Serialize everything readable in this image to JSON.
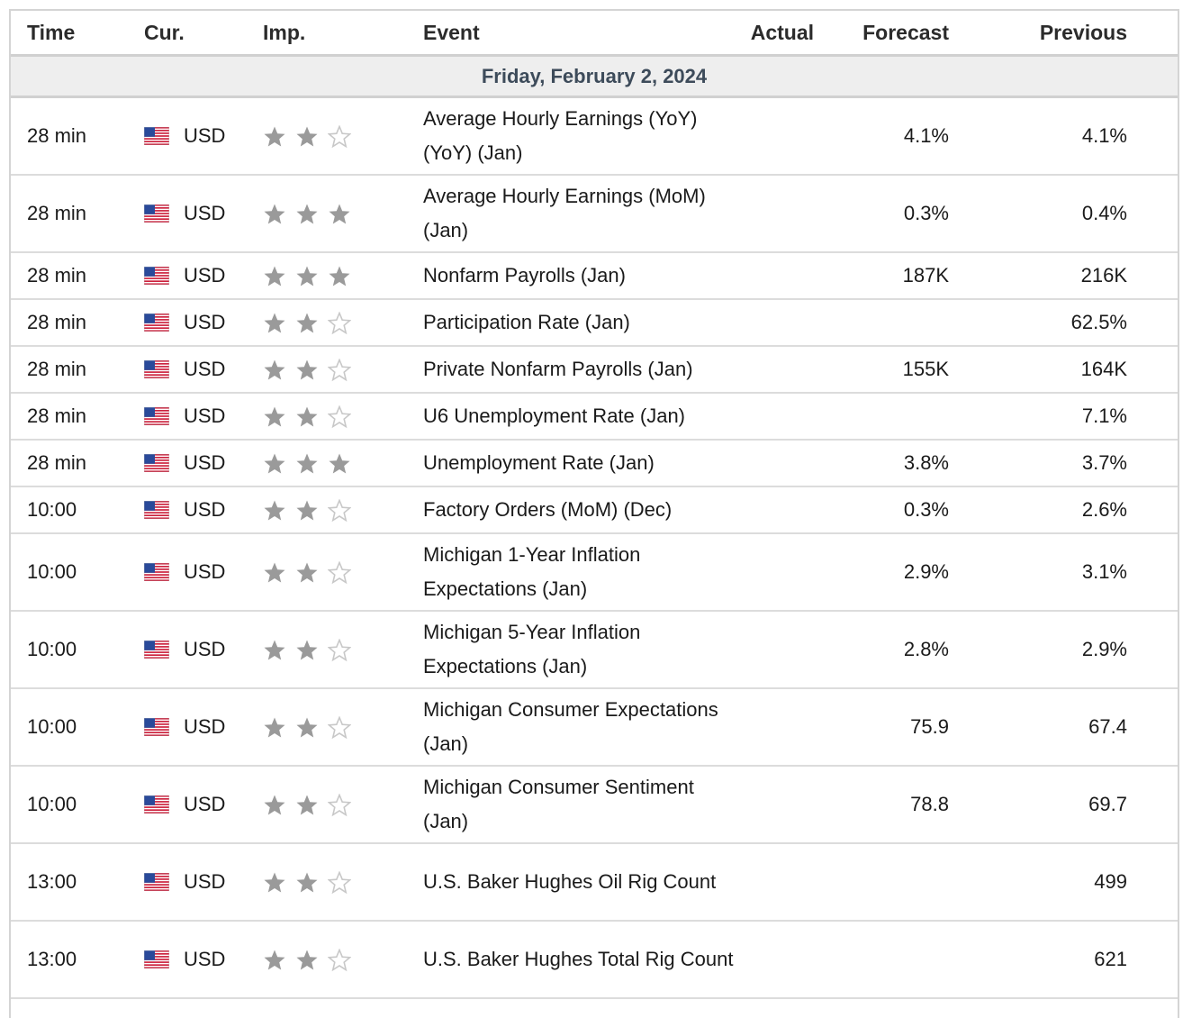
{
  "headers": {
    "time": "Time",
    "currency": "Cur.",
    "importance": "Imp.",
    "event": "Event",
    "actual": "Actual",
    "forecast": "Forecast",
    "previous": "Previous"
  },
  "date_label": "Friday, February 2, 2024",
  "colors": {
    "star_filled": "#9a9a9a",
    "star_empty": "#c8c8c8",
    "date_text": "#3d4b5a",
    "flag_red": "#c8102e",
    "flag_blue": "#2a4a9a"
  },
  "icons": {
    "flag": "us-flag-icon",
    "star_filled": "star-filled-icon",
    "star_empty": "star-empty-icon"
  },
  "events": [
    {
      "time": "28 min",
      "currency": "USD",
      "importance": 2,
      "event": "Average Hourly Earnings (YoY) (YoY) (Jan)",
      "actual": "",
      "forecast": "4.1%",
      "previous": "4.1%"
    },
    {
      "time": "28 min",
      "currency": "USD",
      "importance": 3,
      "event": "Average Hourly Earnings (MoM) (Jan)",
      "actual": "",
      "forecast": "0.3%",
      "previous": "0.4%"
    },
    {
      "time": "28 min",
      "currency": "USD",
      "importance": 3,
      "event": "Nonfarm Payrolls (Jan)",
      "actual": "",
      "forecast": "187K",
      "previous": "216K"
    },
    {
      "time": "28 min",
      "currency": "USD",
      "importance": 2,
      "event": "Participation Rate (Jan)",
      "actual": "",
      "forecast": "",
      "previous": "62.5%"
    },
    {
      "time": "28 min",
      "currency": "USD",
      "importance": 2,
      "event": "Private Nonfarm Payrolls (Jan)",
      "actual": "",
      "forecast": "155K",
      "previous": "164K"
    },
    {
      "time": "28 min",
      "currency": "USD",
      "importance": 2,
      "event": "U6 Unemployment Rate (Jan)",
      "actual": "",
      "forecast": "",
      "previous": "7.1%"
    },
    {
      "time": "28 min",
      "currency": "USD",
      "importance": 3,
      "event": "Unemployment Rate (Jan)",
      "actual": "",
      "forecast": "3.8%",
      "previous": "3.7%"
    },
    {
      "time": "10:00",
      "currency": "USD",
      "importance": 2,
      "event": "Factory Orders (MoM) (Dec)",
      "actual": "",
      "forecast": "0.3%",
      "previous": "2.6%"
    },
    {
      "time": "10:00",
      "currency": "USD",
      "importance": 2,
      "event": "Michigan 1-Year Inflation Expectations (Jan)",
      "actual": "",
      "forecast": "2.9%",
      "previous": "3.1%"
    },
    {
      "time": "10:00",
      "currency": "USD",
      "importance": 2,
      "event": "Michigan 5-Year Inflation Expectations (Jan)",
      "actual": "",
      "forecast": "2.8%",
      "previous": "2.9%"
    },
    {
      "time": "10:00",
      "currency": "USD",
      "importance": 2,
      "event": "Michigan Consumer Expectations (Jan)",
      "actual": "",
      "forecast": "75.9",
      "previous": "67.4"
    },
    {
      "time": "10:00",
      "currency": "USD",
      "importance": 2,
      "event": "Michigan Consumer Sentiment (Jan)",
      "actual": "",
      "forecast": "78.8",
      "previous": "69.7"
    },
    {
      "time": "13:00",
      "currency": "USD",
      "importance": 2,
      "event": "U.S. Baker Hughes Oil Rig Count",
      "actual": "",
      "forecast": "",
      "previous": "499"
    },
    {
      "time": "13:00",
      "currency": "USD",
      "importance": 2,
      "event": "U.S. Baker Hughes Total Rig Count",
      "actual": "",
      "forecast": "",
      "previous": "621"
    }
  ]
}
